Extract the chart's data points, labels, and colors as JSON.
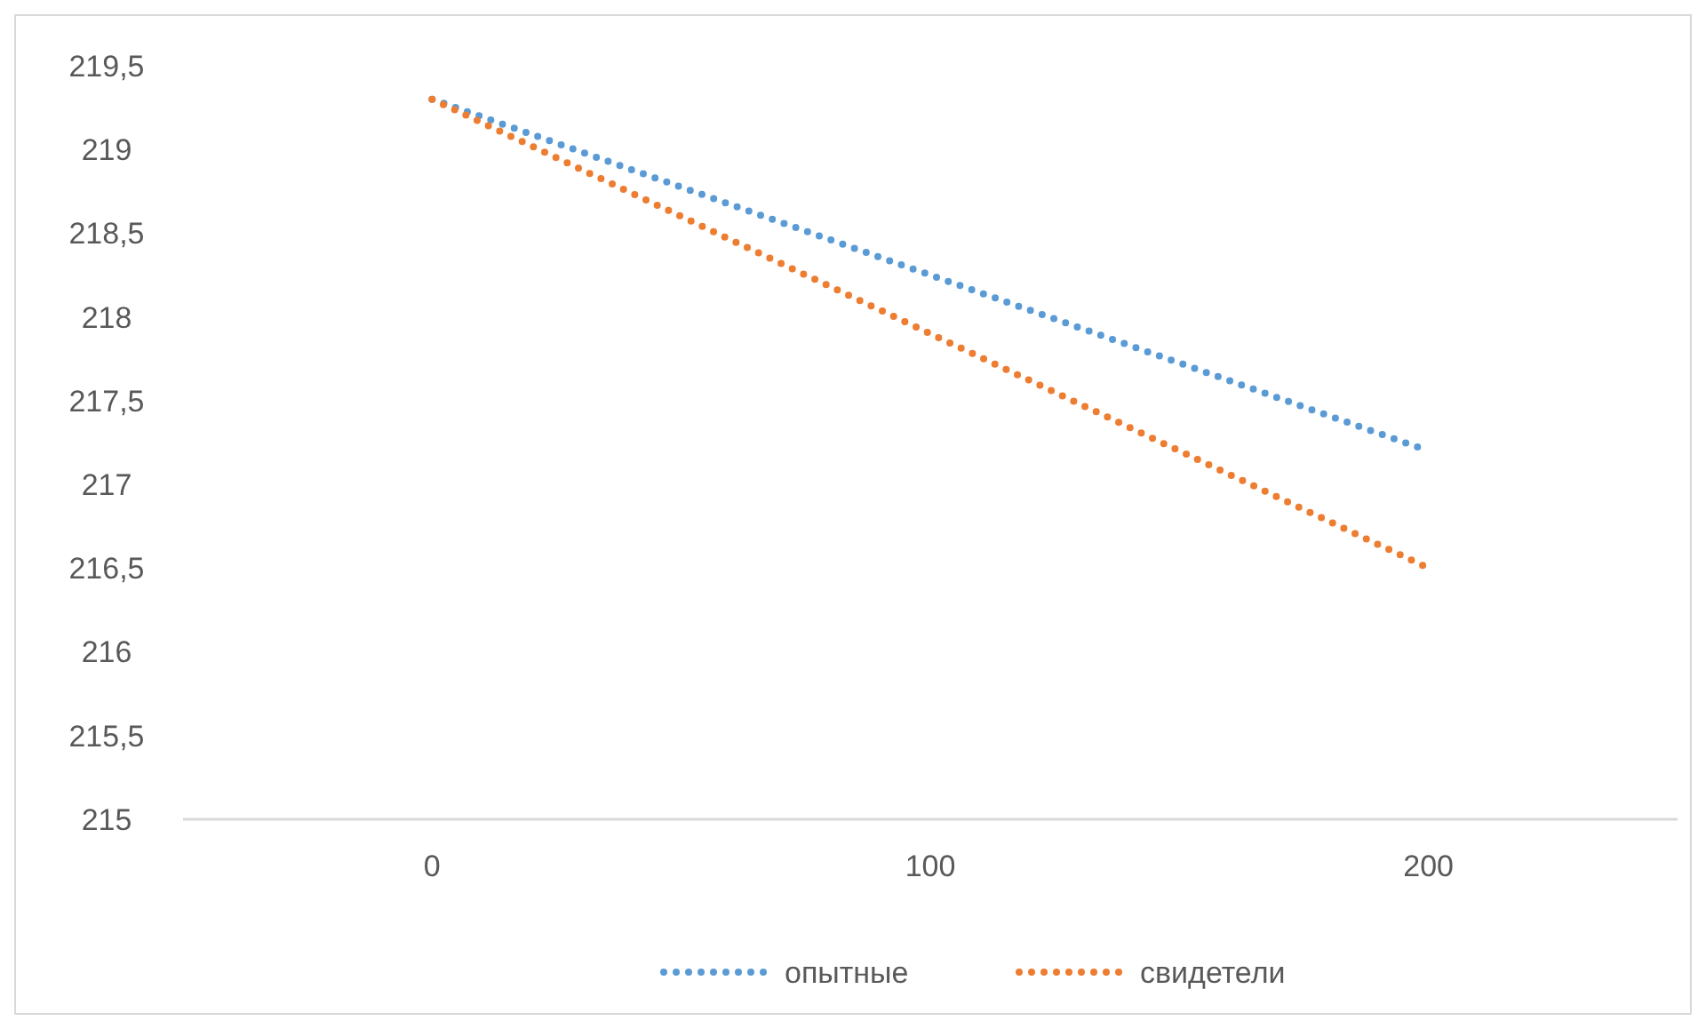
{
  "chart_data": {
    "type": "line",
    "x": [
      0,
      200
    ],
    "series": [
      {
        "name": "опытные",
        "color": "#5b9bd5",
        "values": [
          219.3,
          217.2
        ]
      },
      {
        "name": "свидетели",
        "color": "#ed7d31",
        "values": [
          219.3,
          216.5
        ]
      }
    ],
    "xlim": [
      -50,
      250
    ],
    "xticks": [
      0,
      100,
      200
    ],
    "ylim": [
      215,
      219.5
    ],
    "yticks": [
      215,
      {
        "value": 215.5,
        "label": "215,5"
      },
      216,
      {
        "value": 216.5,
        "label": "216,5"
      },
      217,
      {
        "value": 217.5,
        "label": "217,5"
      },
      218,
      {
        "value": 218.5,
        "label": "218,5"
      },
      219,
      {
        "value": 219.5,
        "label": "219,5"
      }
    ],
    "grid": false,
    "legend": "bottom",
    "line_style": "dotted"
  }
}
